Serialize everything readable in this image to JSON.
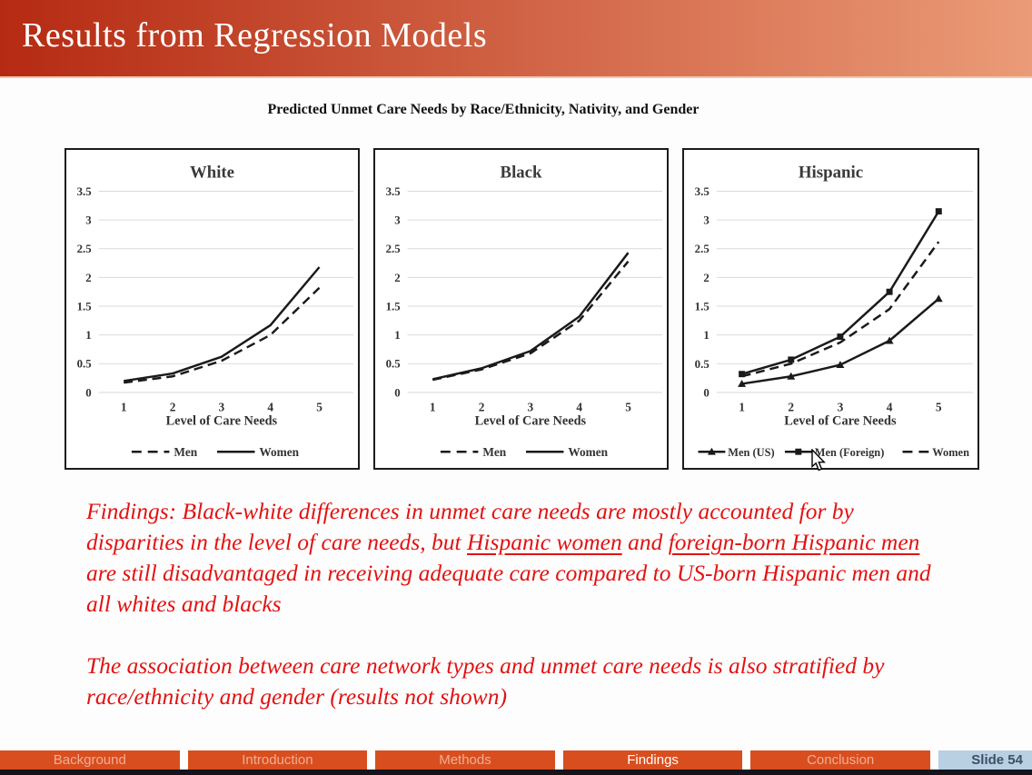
{
  "slide": {
    "header": {
      "title": "Results from Regression Models"
    },
    "figure_title": "Predicted Unmet Care Needs by Race/Ethnicity, Nativity, and Gender",
    "findings": {
      "para1": [
        {
          "text": "Findings: Black-white differences in unmet care needs are mostly accounted for by disparities in the level of care needs, but "
        },
        {
          "text": "Hispanic women",
          "underline": true
        },
        {
          "text": " and "
        },
        {
          "text": "foreign-born Hispanic men",
          "underline": true
        },
        {
          "text": " are still disadvantaged in receiving adequate care compared to US-born Hispanic men and all whites and blacks"
        }
      ],
      "para2": [
        {
          "text": "The association between care network types and unmet care needs is also stratified by race/ethnicity and gender (results not shown)"
        }
      ]
    },
    "nav": {
      "tabs": [
        {
          "label": "Background",
          "active": false
        },
        {
          "label": "Introduction",
          "active": false
        },
        {
          "label": "Methods",
          "active": false
        },
        {
          "label": "Findings",
          "active": true
        },
        {
          "label": "Conclusion",
          "active": false
        }
      ],
      "slide_label": "Slide 54"
    },
    "colors": {
      "hdr_left": "#b52a12",
      "hdr_right": "#eb9b77",
      "tab_bg": "#d94e1e",
      "tab_inactive": "#efae96",
      "tab_active": "#ffffff",
      "slidetab_bg": "#b9cfe2",
      "slidetab_text": "#3b4f66",
      "footer_strip": "#14141c",
      "findings_red": "#e31212",
      "chart_line": "#1a1a1a",
      "chart_grid": "#dadada",
      "chart_text": "#333333"
    }
  },
  "chart_data": [
    {
      "type": "line",
      "title": "White",
      "xlabel": "Level of Care Needs",
      "x": [
        1,
        2,
        3,
        4,
        5
      ],
      "ylim": [
        0,
        3.5
      ],
      "yticks": [
        0,
        0.5,
        1,
        1.5,
        2,
        2.5,
        3,
        3.5
      ],
      "grid": true,
      "legend_position": "bottom",
      "series": [
        {
          "name": "Men",
          "line": "dashed",
          "marker": "none",
          "values": [
            0.17,
            0.28,
            0.55,
            1.0,
            1.82
          ]
        },
        {
          "name": "Women",
          "line": "solid",
          "marker": "none",
          "values": [
            0.2,
            0.33,
            0.62,
            1.17,
            2.18
          ]
        }
      ]
    },
    {
      "type": "line",
      "title": "Black",
      "xlabel": "Level of Care Needs",
      "x": [
        1,
        2,
        3,
        4,
        5
      ],
      "ylim": [
        0,
        3.5
      ],
      "yticks": [
        0,
        0.5,
        1,
        1.5,
        2,
        2.5,
        3,
        3.5
      ],
      "grid": true,
      "legend_position": "bottom",
      "series": [
        {
          "name": "Men",
          "line": "dashed",
          "marker": "none",
          "values": [
            0.22,
            0.4,
            0.68,
            1.25,
            2.28
          ]
        },
        {
          "name": "Women",
          "line": "solid",
          "marker": "none",
          "values": [
            0.23,
            0.42,
            0.72,
            1.32,
            2.43
          ]
        }
      ]
    },
    {
      "type": "line",
      "title": "Hispanic",
      "xlabel": "Level of Care Needs",
      "x": [
        1,
        2,
        3,
        4,
        5
      ],
      "ylim": [
        0,
        3.5
      ],
      "yticks": [
        0,
        0.5,
        1,
        1.5,
        2,
        2.5,
        3,
        3.5
      ],
      "grid": true,
      "legend_position": "bottom",
      "series": [
        {
          "name": "Men (US)",
          "line": "solid",
          "marker": "triangle",
          "values": [
            0.15,
            0.28,
            0.48,
            0.9,
            1.63
          ]
        },
        {
          "name": "Men (Foreign)",
          "line": "solid",
          "marker": "square",
          "values": [
            0.32,
            0.57,
            0.97,
            1.75,
            3.15
          ]
        },
        {
          "name": "Women",
          "line": "dashed",
          "marker": "none",
          "values": [
            0.28,
            0.5,
            0.87,
            1.45,
            2.62
          ]
        }
      ]
    }
  ]
}
